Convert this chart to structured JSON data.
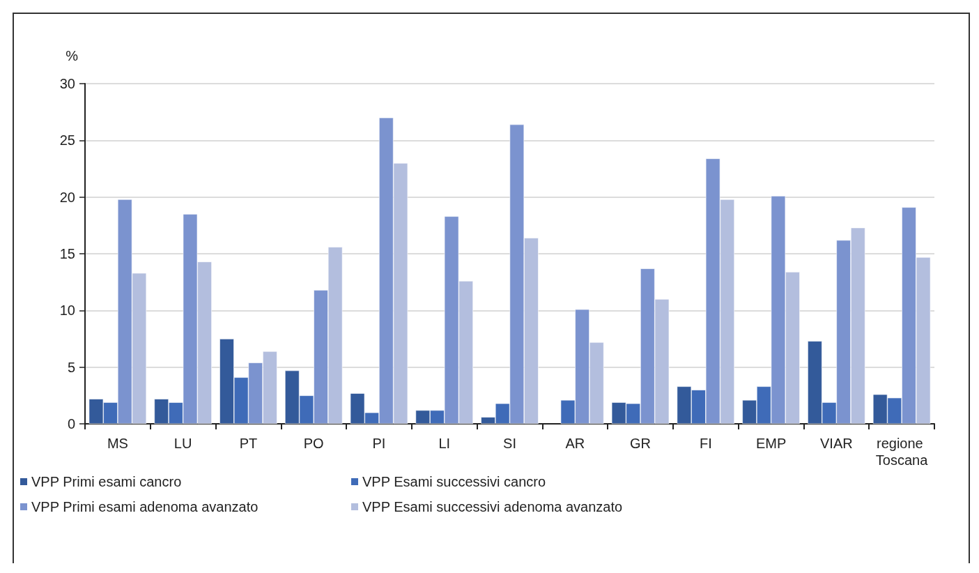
{
  "chart_data": {
    "type": "bar",
    "ylabel": "%",
    "categories": [
      "MS",
      "LU",
      "PT",
      "PO",
      "PI",
      "LI",
      "SI",
      "AR",
      "GR",
      "FI",
      "EMP",
      "VIAR",
      "regione Toscana"
    ],
    "series": [
      {
        "name": "VPP Primi esami cancro",
        "color": "#335a9a",
        "values": [
          2.2,
          2.2,
          7.5,
          4.7,
          2.7,
          1.2,
          0.6,
          null,
          1.9,
          3.3,
          2.1,
          7.3,
          2.6
        ]
      },
      {
        "name": "VPP Esami successivi cancro",
        "color": "#3f6bb8",
        "values": [
          1.9,
          1.9,
          4.1,
          2.5,
          1.0,
          1.2,
          1.8,
          2.1,
          1.8,
          3.0,
          3.3,
          1.9,
          2.3
        ]
      },
      {
        "name": "VPP Primi esami adenoma avanzato",
        "color": "#7b93cf",
        "values": [
          19.8,
          18.5,
          5.4,
          11.8,
          27.0,
          18.3,
          26.4,
          10.1,
          13.7,
          23.4,
          20.1,
          16.2,
          19.1
        ]
      },
      {
        "name": "VPP Esami successivi adenoma avanzato",
        "color": "#b3bede",
        "values": [
          13.3,
          14.3,
          6.4,
          15.6,
          23.0,
          12.6,
          16.4,
          7.2,
          11.0,
          19.8,
          13.4,
          17.3,
          14.7
        ]
      }
    ],
    "ylim": [
      0,
      30
    ],
    "yticks": [
      0,
      5,
      10,
      15,
      20,
      25,
      30
    ],
    "grid": "y",
    "legend": "bottom left"
  }
}
